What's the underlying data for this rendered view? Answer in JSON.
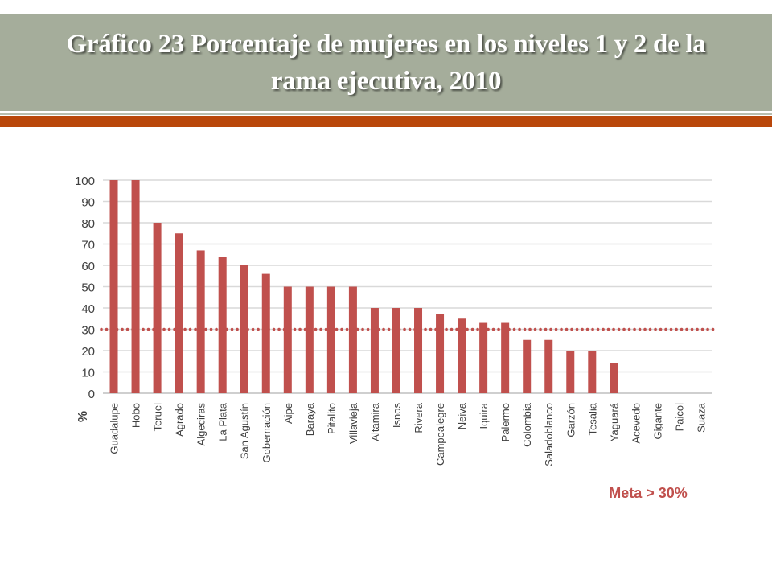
{
  "slide": {
    "title_line1": "Gráfico 23 Porcentaje de mujeres en los niveles 1 y 2 de la",
    "title_line2": "rama ejecutiva, 2010"
  },
  "colors": {
    "title_band": "#a5ad9b",
    "accent_rule": "#b9470a",
    "bar": "#c0504d",
    "target_line": "#c0504d",
    "target_label": "#c0504d",
    "grid": "#d9d9d9"
  },
  "chart_data": {
    "type": "bar",
    "title": "",
    "xlabel": "",
    "ylabel": "%",
    "ylim": [
      0,
      100
    ],
    "yticks": [
      0,
      10,
      20,
      30,
      40,
      50,
      60,
      70,
      80,
      90,
      100
    ],
    "grid": true,
    "categories": [
      "Guadalupe",
      "Hobo",
      "Teruel",
      "Agrado",
      "Algeciras",
      "La Plata",
      "San Agustín",
      "Gobernación",
      "Aipe",
      "Baraya",
      "Pitalito",
      "Villavieja",
      "Altamira",
      "Isnos",
      "Rivera",
      "Campoalegre",
      "Neiva",
      "Iquira",
      "Palermo",
      "Colombia",
      "Saladoblanco",
      "Garzón",
      "Tesalia",
      "Yaguará",
      "Acevedo",
      "Gigante",
      "Paicol",
      "Suaza"
    ],
    "values": [
      100,
      100,
      80,
      75,
      67,
      64,
      60,
      56,
      50,
      50,
      50,
      50,
      40,
      40,
      40,
      37,
      35,
      33,
      33,
      25,
      25,
      20,
      20,
      14,
      0,
      0,
      0,
      0
    ],
    "target": {
      "value": 30,
      "label": "Meta > 30%"
    }
  }
}
